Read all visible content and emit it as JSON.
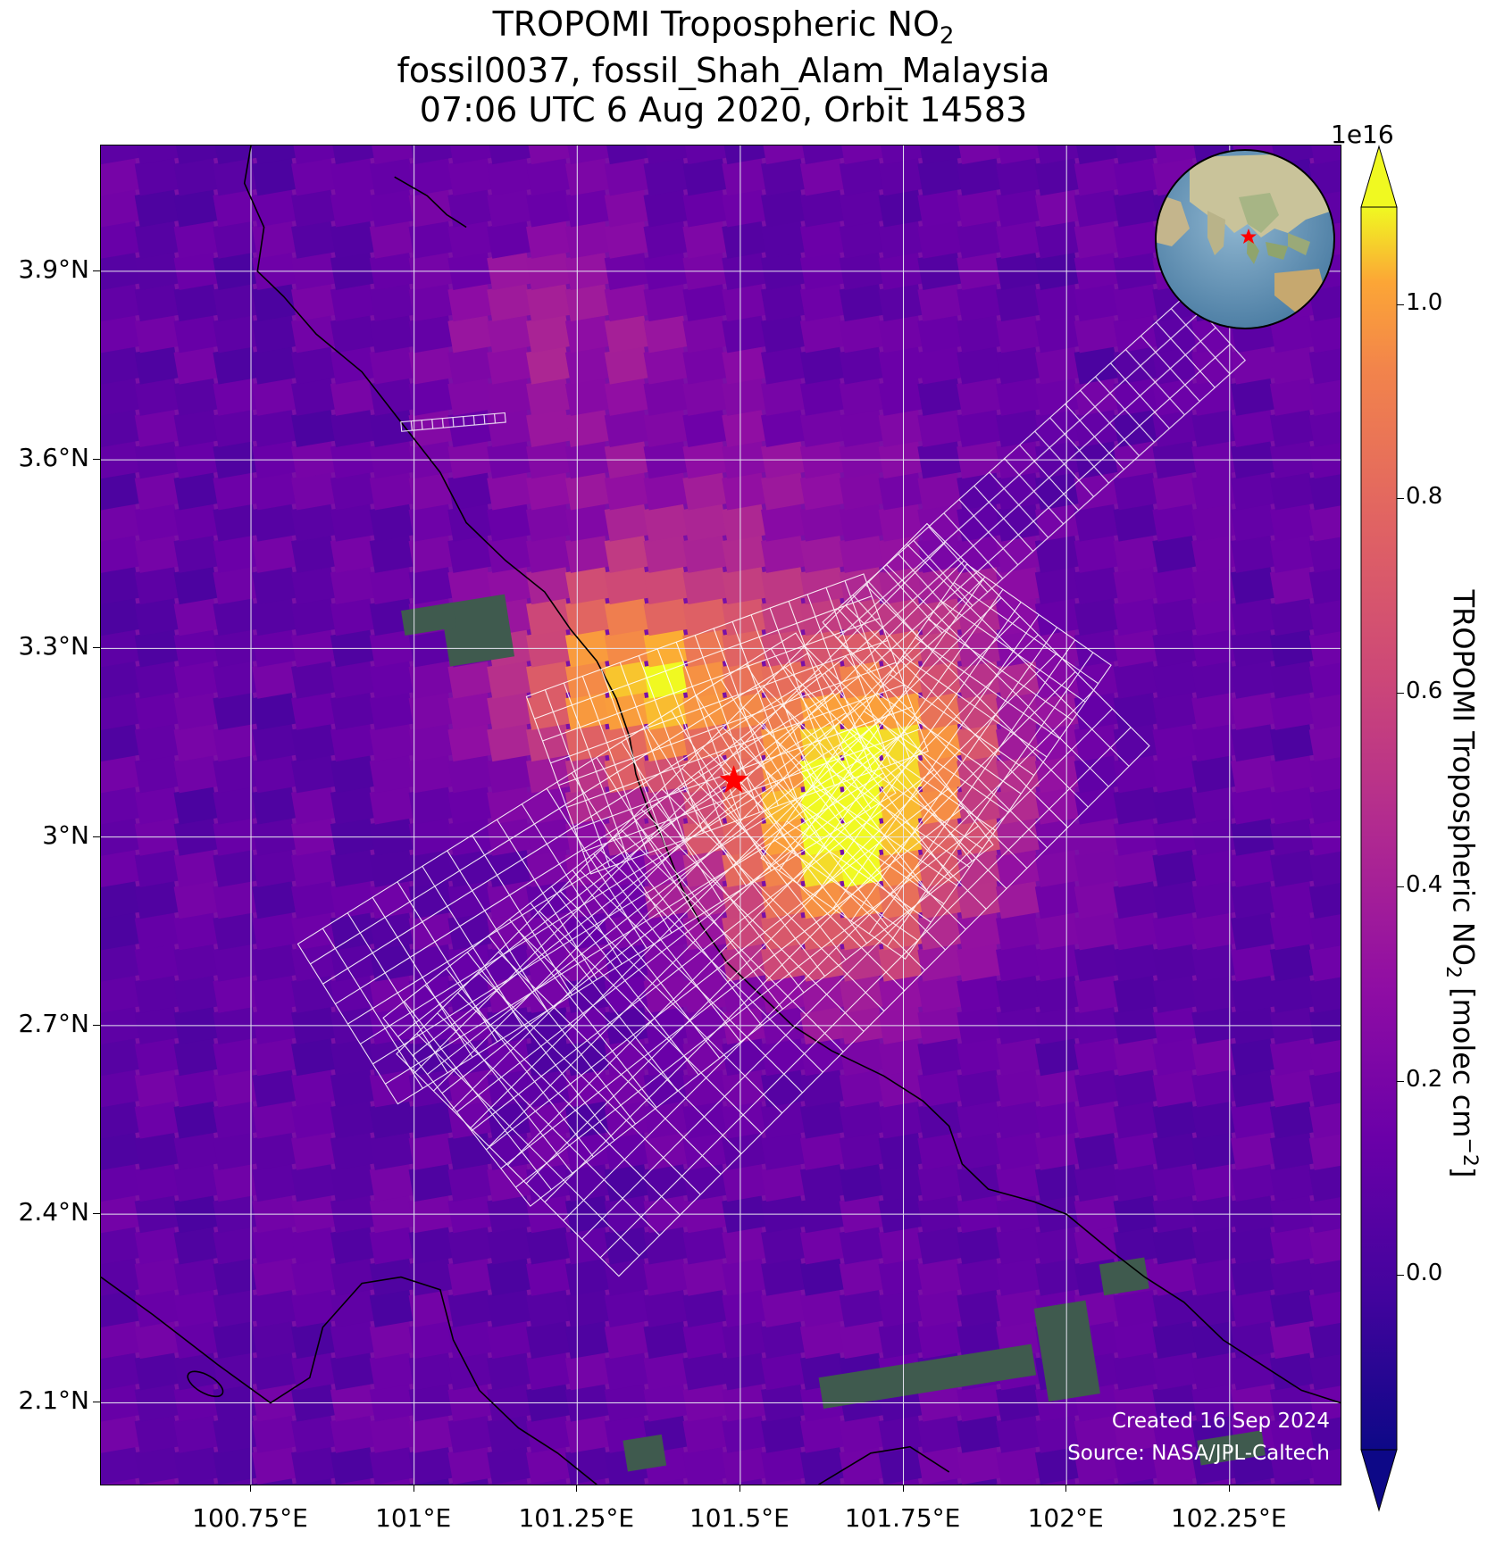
{
  "title": {
    "line1_prefix": "TROPOMI Tropospheric NO",
    "line1_sub": "2",
    "line2": "fossil0037, fossil_Shah_Alam_Malaysia",
    "line3": "07:06 UTC 6 Aug 2020, Orbit 14583"
  },
  "map": {
    "extent": {
      "lon_min": 100.52,
      "lon_max": 102.42,
      "lat_min": 1.97,
      "lat_max": 4.1
    },
    "lat_labels": [
      "3.9°N",
      "3.6°N",
      "3.3°N",
      "3°N",
      "2.7°N",
      "2.4°N",
      "2.1°N"
    ],
    "lat_values": [
      3.9,
      3.6,
      3.3,
      3.0,
      2.7,
      2.4,
      2.1
    ],
    "lon_labels": [
      "100.75°E",
      "101°E",
      "101.25°E",
      "101.5°E",
      "101.75°E",
      "102°E",
      "102.25°E"
    ],
    "lon_values": [
      100.75,
      101.0,
      101.25,
      101.5,
      101.75,
      102.0,
      102.25
    ],
    "site_marker": {
      "name": "fossil_Shah_Alam_Malaysia",
      "lon": 101.49,
      "lat": 3.09,
      "color": "#ff0000"
    }
  },
  "colorbar": {
    "title_prefix": "TROPOMI Tropospheric NO",
    "title_sub": "2",
    "title_suffix": " [molec cm",
    "title_sup": "−2",
    "title_end": "]",
    "exponent": "1e16",
    "min": -0.18,
    "max": 1.1,
    "extend": "both",
    "colormap": "plasma",
    "tick_values": [
      0.0,
      0.2,
      0.4,
      0.6,
      0.8,
      1.0
    ],
    "tick_labels": [
      "0.0",
      "0.2",
      "0.4",
      "0.6",
      "0.8",
      "1.0"
    ]
  },
  "credit": {
    "line1": "Created 16 Sep 2024",
    "line2": "Source: NASA/JPL-Caltech"
  },
  "colors": {
    "gridline": "#e6e6f0",
    "coastline": "#000000",
    "target_grid": "#ffffff"
  }
}
